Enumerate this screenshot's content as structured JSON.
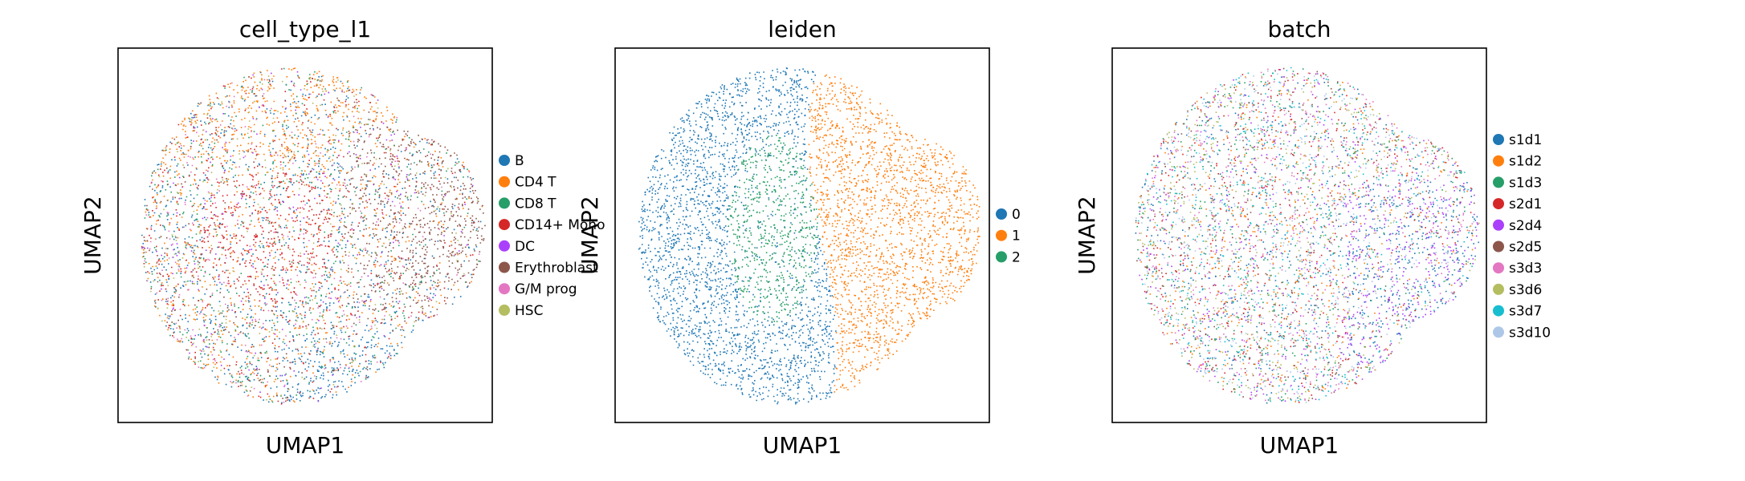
{
  "chart_data": [
    {
      "type": "scatter",
      "title": "cell_type_l1",
      "xlabel": "UMAP1",
      "ylabel": "UMAP2",
      "ticks": "none",
      "legend_placement": "right",
      "series": [
        {
          "name": "B",
          "color": "#1f77b4"
        },
        {
          "name": "CD4 T",
          "color": "#ff7f0e"
        },
        {
          "name": "CD8 T",
          "color": "#279e68"
        },
        {
          "name": "CD14+ Mono",
          "color": "#d62728"
        },
        {
          "name": "DC",
          "color": "#aa40fc"
        },
        {
          "name": "Erythroblast",
          "color": "#8c564b"
        },
        {
          "name": "G/M prog",
          "color": "#e377c2"
        },
        {
          "name": "HSC",
          "color": "#b5bd61"
        }
      ]
    },
    {
      "type": "scatter",
      "title": "leiden",
      "xlabel": "UMAP1",
      "ylabel": "UMAP2",
      "ticks": "none",
      "legend_placement": "right",
      "series": [
        {
          "name": "0",
          "color": "#1f77b4"
        },
        {
          "name": "1",
          "color": "#ff7f0e"
        },
        {
          "name": "2",
          "color": "#279e68"
        }
      ]
    },
    {
      "type": "scatter",
      "title": "batch",
      "xlabel": "UMAP1",
      "ylabel": "UMAP2",
      "ticks": "none",
      "legend_placement": "right",
      "series": [
        {
          "name": "s1d1",
          "color": "#1f77b4"
        },
        {
          "name": "s1d2",
          "color": "#ff7f0e"
        },
        {
          "name": "s1d3",
          "color": "#279e68"
        },
        {
          "name": "s2d1",
          "color": "#d62728"
        },
        {
          "name": "s2d4",
          "color": "#aa40fc"
        },
        {
          "name": "s2d5",
          "color": "#8c564b"
        },
        {
          "name": "s3d3",
          "color": "#e377c2"
        },
        {
          "name": "s3d6",
          "color": "#b5bd61"
        },
        {
          "name": "s3d7",
          "color": "#17becf"
        },
        {
          "name": "s3d10",
          "color": "#aec7e8"
        }
      ]
    }
  ]
}
